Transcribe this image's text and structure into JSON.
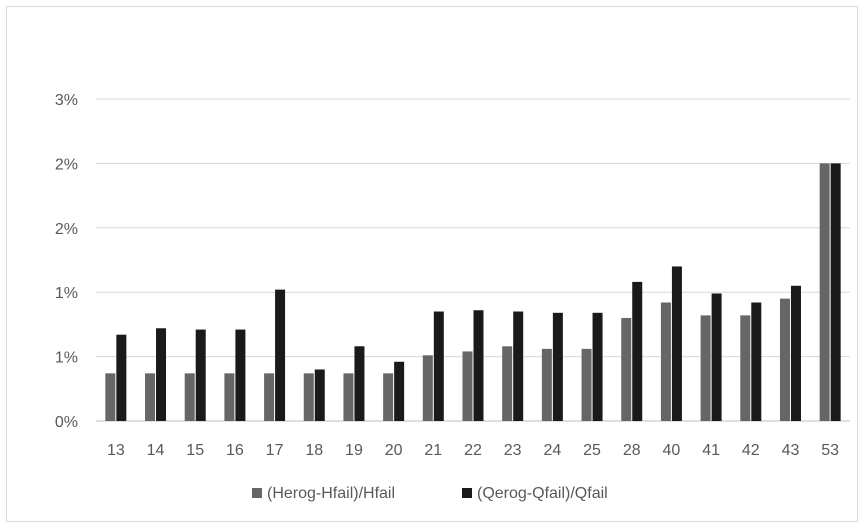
{
  "chart_data": {
    "type": "bar",
    "title": "",
    "xlabel": "",
    "ylabel": "",
    "categories": [
      "13",
      "14",
      "15",
      "16",
      "17",
      "18",
      "19",
      "20",
      "21",
      "22",
      "23",
      "24",
      "25",
      "28",
      "40",
      "41",
      "42",
      "43",
      "53"
    ],
    "ytick_labels": [
      "0%",
      "1%",
      "1%",
      "2%",
      "2%",
      "3%"
    ],
    "ytick_values": [
      0,
      0.5,
      1.0,
      1.5,
      2.0,
      2.5
    ],
    "ylim": [
      0,
      2.5
    ],
    "grid": true,
    "legend_position": "bottom",
    "series": [
      {
        "name": "(Herog-Hfail)/Hfail",
        "color": "#666666",
        "values": [
          0.37,
          0.37,
          0.37,
          0.37,
          0.37,
          0.37,
          0.37,
          0.37,
          0.51,
          0.54,
          0.58,
          0.56,
          0.56,
          0.8,
          0.92,
          0.82,
          0.82,
          0.95,
          2.0
        ]
      },
      {
        "name": "(Qerog-Qfail)/Qfail",
        "color": "#1a1a1a",
        "values": [
          0.67,
          0.72,
          0.71,
          0.71,
          1.02,
          0.4,
          0.58,
          0.46,
          0.85,
          0.86,
          0.85,
          0.84,
          0.84,
          1.08,
          1.2,
          0.99,
          0.92,
          1.05,
          2.0
        ]
      }
    ]
  }
}
